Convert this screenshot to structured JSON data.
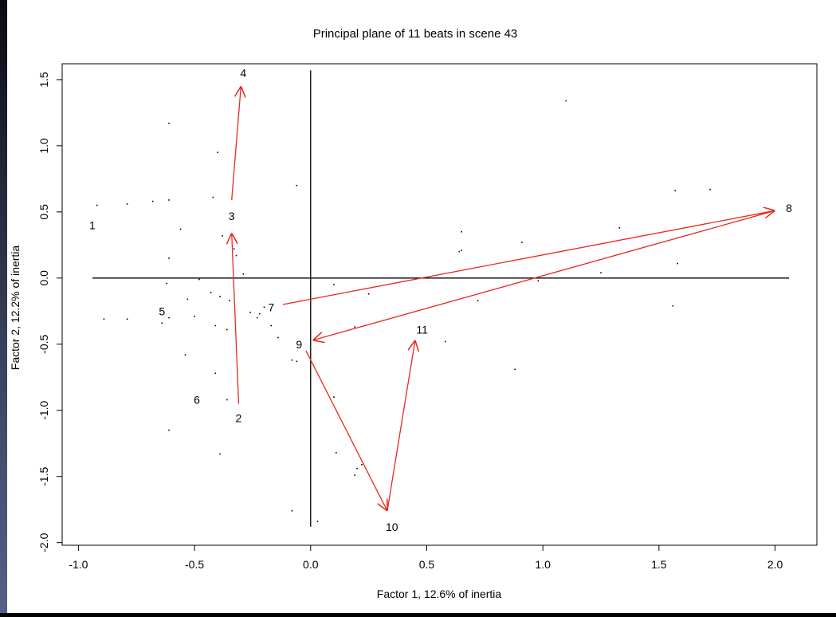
{
  "chart_data": {
    "type": "scatter",
    "title": "Principal plane of 11 beats in scene 43",
    "xlabel": "Factor 1, 12.6% of inertia",
    "ylabel": "Factor 2, 12.2% of inertia",
    "xlim": [
      -1.07,
      2.18
    ],
    "ylim": [
      -2.02,
      1.62
    ],
    "xticks": [
      {
        "v": -1.0,
        "label": "-1.0"
      },
      {
        "v": -0.5,
        "label": "-0.5"
      },
      {
        "v": 0.0,
        "label": "0.0"
      },
      {
        "v": 0.5,
        "label": "0.5"
      },
      {
        "v": 1.0,
        "label": "1.0"
      },
      {
        "v": 1.5,
        "label": "1.5"
      },
      {
        "v": 2.0,
        "label": "2.0"
      }
    ],
    "yticks": [
      {
        "v": -2.0,
        "label": "-2.0"
      },
      {
        "v": -1.5,
        "label": "-1.5"
      },
      {
        "v": -1.0,
        "label": "-1.0"
      },
      {
        "v": -0.5,
        "label": "-0.5"
      },
      {
        "v": 0.0,
        "label": "0.0"
      },
      {
        "v": 0.5,
        "label": "0.5"
      },
      {
        "v": 1.0,
        "label": "1.0"
      },
      {
        "v": 1.5,
        "label": "1.5"
      }
    ],
    "axes_lines": {
      "x_from": -0.94,
      "x_to": 2.06,
      "y_from": -1.88,
      "y_to": 1.57
    },
    "beats": [
      {
        "label": "1",
        "x": -0.94,
        "y": 0.4
      },
      {
        "label": "2",
        "x": -0.31,
        "y": -1.06
      },
      {
        "label": "3",
        "x": -0.34,
        "y": 0.47
      },
      {
        "label": "4",
        "x": -0.29,
        "y": 1.55
      },
      {
        "label": "5",
        "x": -0.64,
        "y": -0.25
      },
      {
        "label": "6",
        "x": -0.49,
        "y": -0.92
      },
      {
        "label": "7",
        "x": -0.17,
        "y": -0.22
      },
      {
        "label": "8",
        "x": 2.06,
        "y": 0.53
      },
      {
        "label": "9",
        "x": -0.05,
        "y": -0.5
      },
      {
        "label": "10",
        "x": 0.35,
        "y": -1.88
      },
      {
        "label": "11",
        "x": 0.48,
        "y": -0.39
      }
    ],
    "arrows": [
      {
        "x1": -0.31,
        "y1": -0.95,
        "x2": -0.34,
        "y2": 0.34
      },
      {
        "x1": -0.34,
        "y1": 0.59,
        "x2": -0.3,
        "y2": 1.45
      },
      {
        "x1": -0.12,
        "y1": -0.2,
        "x2": 2.0,
        "y2": 0.51
      },
      {
        "x1": 2.0,
        "y1": 0.51,
        "x2": 0.01,
        "y2": -0.47
      },
      {
        "x1": -0.02,
        "y1": -0.55,
        "x2": 0.33,
        "y2": -1.76
      },
      {
        "x1": 0.33,
        "y1": -1.76,
        "x2": 0.45,
        "y2": -0.47
      }
    ],
    "points": [
      [
        -0.92,
        0.55
      ],
      [
        -0.79,
        0.56
      ],
      [
        -0.68,
        0.58
      ],
      [
        -0.61,
        0.59
      ],
      [
        -0.61,
        1.17
      ],
      [
        -0.4,
        0.95
      ],
      [
        -0.42,
        0.61
      ],
      [
        -0.06,
        0.7
      ],
      [
        -0.56,
        0.37
      ],
      [
        -0.38,
        0.32
      ],
      [
        -0.33,
        0.22
      ],
      [
        -0.32,
        0.17
      ],
      [
        -0.29,
        0.03
      ],
      [
        -0.61,
        0.15
      ],
      [
        -0.48,
        -0.01
      ],
      [
        -0.62,
        -0.04
      ],
      [
        -0.53,
        -0.16
      ],
      [
        -0.43,
        -0.11
      ],
      [
        -0.39,
        -0.14
      ],
      [
        -0.35,
        -0.17
      ],
      [
        -0.26,
        -0.26
      ],
      [
        -0.2,
        -0.22
      ],
      [
        -0.22,
        -0.27
      ],
      [
        -0.23,
        -0.3
      ],
      [
        -0.17,
        -0.36
      ],
      [
        -0.14,
        -0.45
      ],
      [
        -0.89,
        -0.31
      ],
      [
        -0.79,
        -0.31
      ],
      [
        -0.64,
        -0.34
      ],
      [
        -0.61,
        -0.3
      ],
      [
        -0.5,
        -0.29
      ],
      [
        -0.41,
        -0.36
      ],
      [
        -0.36,
        -0.39
      ],
      [
        -0.54,
        -0.58
      ],
      [
        -0.41,
        -0.72
      ],
      [
        -0.36,
        -0.92
      ],
      [
        -0.61,
        -1.15
      ],
      [
        -0.39,
        -1.33
      ],
      [
        -0.08,
        -0.62
      ],
      [
        -0.06,
        -0.63
      ],
      [
        0.1,
        -0.05
      ],
      [
        0.25,
        -0.12
      ],
      [
        0.19,
        -0.37
      ],
      [
        0.1,
        -0.9
      ],
      [
        0.11,
        -1.32
      ],
      [
        0.22,
        -1.41
      ],
      [
        0.2,
        -1.44
      ],
      [
        0.19,
        -1.49
      ],
      [
        -0.08,
        -1.76
      ],
      [
        0.03,
        -1.84
      ],
      [
        0.58,
        -0.48
      ],
      [
        0.64,
        0.2
      ],
      [
        0.65,
        0.21
      ],
      [
        0.65,
        0.35
      ],
      [
        0.91,
        0.27
      ],
      [
        0.98,
        -0.02
      ],
      [
        0.72,
        -0.17
      ],
      [
        0.88,
        -0.69
      ],
      [
        1.1,
        1.34
      ],
      [
        1.25,
        0.04
      ],
      [
        1.33,
        0.38
      ],
      [
        1.57,
        0.66
      ],
      [
        1.72,
        0.67
      ],
      [
        1.58,
        0.11
      ],
      [
        1.56,
        -0.21
      ]
    ]
  },
  "colors": {
    "arrow": "#e8291c",
    "ink": "#000000",
    "background": "#ffffff"
  }
}
